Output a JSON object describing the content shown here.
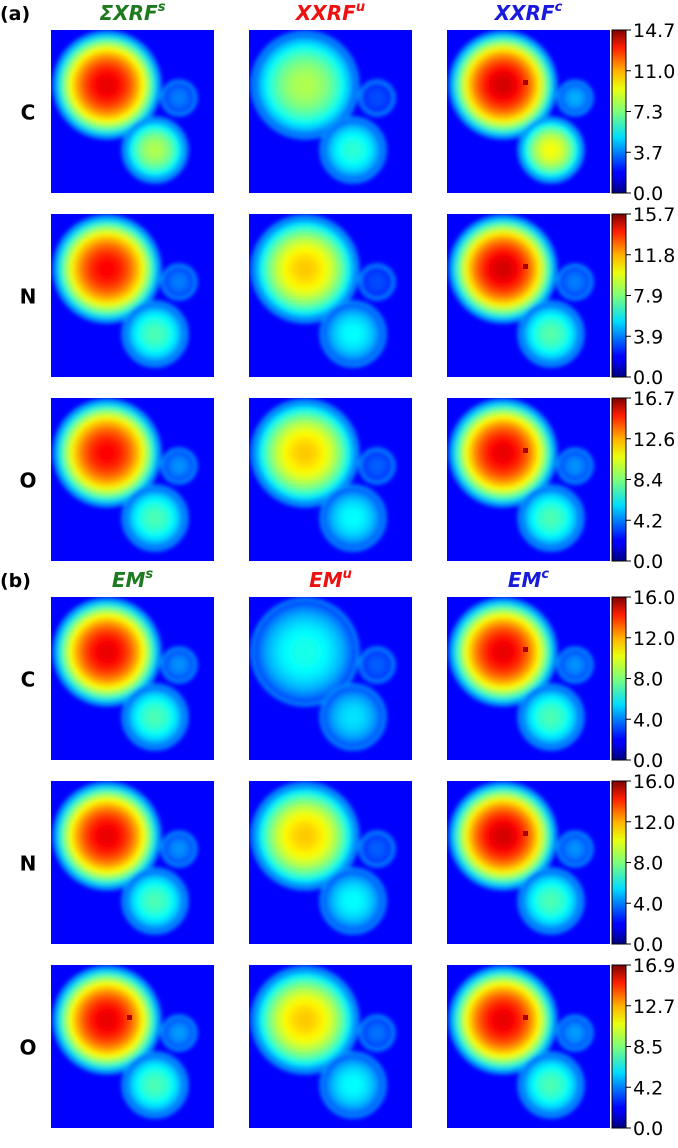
{
  "figure": {
    "panels": [
      {
        "label": "(a)",
        "columns": [
          {
            "base": "ΣXRF",
            "sup": "s",
            "color": "#1e7a1e"
          },
          {
            "base": "XXRF",
            "sup": "u",
            "color": "#ee1111"
          },
          {
            "base": "XXRF",
            "sup": "c",
            "color": "#1a1adc"
          }
        ],
        "rows": [
          {
            "label": "C",
            "cbar_ticks": [
              "14.7",
              "11.0",
              "7.3",
              "3.7",
              "0.0"
            ],
            "vmax": 14.7
          },
          {
            "label": "N",
            "cbar_ticks": [
              "15.7",
              "11.8",
              "7.9",
              "3.9",
              "0.0"
            ],
            "vmax": 15.7
          },
          {
            "label": "O",
            "cbar_ticks": [
              "16.7",
              "12.6",
              "8.4",
              "4.2",
              "0.0"
            ],
            "vmax": 16.7
          }
        ]
      },
      {
        "label": "(b)",
        "columns": [
          {
            "base": "EM",
            "sup": "s",
            "color": "#1e7a1e"
          },
          {
            "base": "EM",
            "sup": "u",
            "color": "#ee1111"
          },
          {
            "base": "EM",
            "sup": "c",
            "color": "#1a1adc"
          }
        ],
        "rows": [
          {
            "label": "C",
            "cbar_ticks": [
              "16.0",
              "12.0",
              "8.0",
              "4.0",
              "0.0"
            ],
            "vmax": 16.0
          },
          {
            "label": "N",
            "cbar_ticks": [
              "16.0",
              "12.0",
              "8.0",
              "4.0",
              "0.0"
            ],
            "vmax": 16.0
          },
          {
            "label": "O",
            "cbar_ticks": [
              "16.9",
              "12.7",
              "8.5",
              "4.2",
              "0.0"
            ],
            "vmax": 16.9
          }
        ]
      }
    ]
  },
  "chart_data": {
    "type": "heatmap",
    "colormap": "jet",
    "background_color": "#0000ff",
    "maps": [
      {
        "panel": "(a)",
        "row": "C",
        "column": "ΣXRF s",
        "peak_levels": [
          0.9,
          0.25,
          0.55
        ],
        "center_dip": false
      },
      {
        "panel": "(a)",
        "row": "C",
        "column": "XXRF u",
        "peak_levels": [
          0.55,
          0.2,
          0.42
        ],
        "center_dip": false
      },
      {
        "panel": "(a)",
        "row": "C",
        "column": "XXRF c",
        "peak_levels": [
          0.92,
          0.3,
          0.62
        ],
        "center_dip": true
      },
      {
        "panel": "(a)",
        "row": "N",
        "column": "ΣXRF s",
        "peak_levels": [
          0.88,
          0.25,
          0.45
        ],
        "center_dip": false
      },
      {
        "panel": "(a)",
        "row": "N",
        "column": "XXRF u",
        "peak_levels": [
          0.68,
          0.2,
          0.38
        ],
        "center_dip": false
      },
      {
        "panel": "(a)",
        "row": "N",
        "column": "XXRF c",
        "peak_levels": [
          0.92,
          0.25,
          0.46
        ],
        "center_dip": true
      },
      {
        "panel": "(a)",
        "row": "O",
        "column": "ΣXRF s",
        "peak_levels": [
          0.88,
          0.27,
          0.45
        ],
        "center_dip": false
      },
      {
        "panel": "(a)",
        "row": "O",
        "column": "XXRF u",
        "peak_levels": [
          0.68,
          0.22,
          0.38
        ],
        "center_dip": false
      },
      {
        "panel": "(a)",
        "row": "O",
        "column": "XXRF c",
        "peak_levels": [
          0.9,
          0.27,
          0.45
        ],
        "center_dip": true
      },
      {
        "panel": "(b)",
        "row": "C",
        "column": "EM s",
        "peak_levels": [
          0.9,
          0.27,
          0.45
        ],
        "center_dip": false
      },
      {
        "panel": "(b)",
        "row": "C",
        "column": "EM u",
        "peak_levels": [
          0.4,
          0.22,
          0.35
        ],
        "center_dip": false
      },
      {
        "panel": "(b)",
        "row": "C",
        "column": "EM c",
        "peak_levels": [
          0.9,
          0.27,
          0.45
        ],
        "center_dip": true
      },
      {
        "panel": "(b)",
        "row": "N",
        "column": "EM s",
        "peak_levels": [
          0.9,
          0.27,
          0.45
        ],
        "center_dip": false
      },
      {
        "panel": "(b)",
        "row": "N",
        "column": "EM u",
        "peak_levels": [
          0.68,
          0.22,
          0.38
        ],
        "center_dip": false
      },
      {
        "panel": "(b)",
        "row": "N",
        "column": "EM c",
        "peak_levels": [
          0.92,
          0.27,
          0.45
        ],
        "center_dip": true
      },
      {
        "panel": "(b)",
        "row": "O",
        "column": "EM s",
        "peak_levels": [
          0.9,
          0.28,
          0.45
        ],
        "center_dip": true
      },
      {
        "panel": "(b)",
        "row": "O",
        "column": "EM u",
        "peak_levels": [
          0.68,
          0.24,
          0.38
        ],
        "center_dip": false
      },
      {
        "panel": "(b)",
        "row": "O",
        "column": "EM c",
        "peak_levels": [
          0.9,
          0.28,
          0.45
        ],
        "center_dip": true
      }
    ]
  }
}
